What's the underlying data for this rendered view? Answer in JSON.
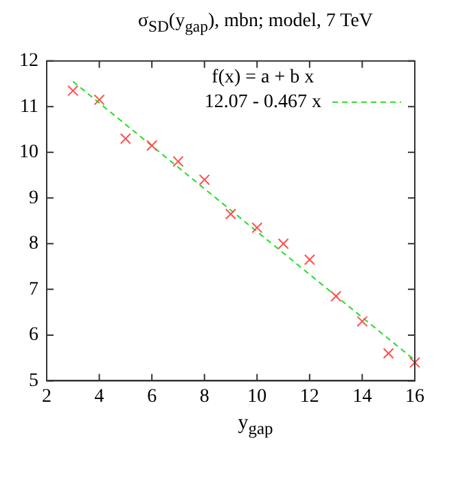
{
  "chart_data": {
    "type": "scatter",
    "title": "σ$_{SD}$(y$_{gap}$), mbn; model, 7 TeV",
    "xlabel": "y$_{gap}$",
    "legend_title": "f(x) = a + b x",
    "legend": "top right",
    "grid": false,
    "xlim": [
      2,
      16
    ],
    "xticks": [
      2,
      4,
      6,
      8,
      10,
      12,
      14,
      16
    ],
    "ylim": [
      5,
      12
    ],
    "yticks": [
      5,
      6,
      7,
      8,
      9,
      10,
      11,
      12
    ],
    "series": [
      {
        "color": "#ff5050",
        "marker": "cross",
        "x": [
          3,
          4,
          5,
          6,
          7,
          8,
          9,
          10,
          11,
          12,
          13,
          14,
          15,
          16
        ],
        "values": [
          11.35,
          11.15,
          10.3,
          10.15,
          9.8,
          9.4,
          8.65,
          8.35,
          8.0,
          7.65,
          6.85,
          6.3,
          5.6,
          5.4
        ]
      },
      {
        "type": "line",
        "name": "12.07 - 0.467 x",
        "color": "#22dd22",
        "marker": "none",
        "line_style": "dashed",
        "x": [
          3,
          16
        ],
        "values": [
          11.55,
          5.45
        ]
      }
    ]
  }
}
